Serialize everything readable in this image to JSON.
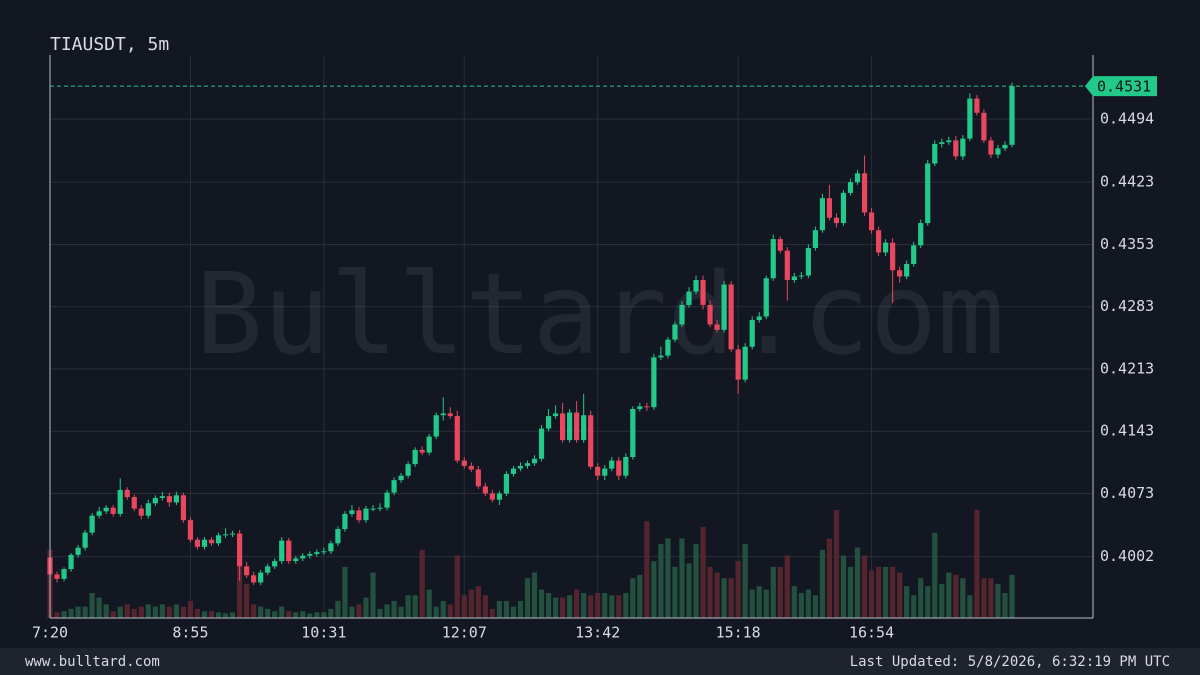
{
  "chart_data": {
    "type": "candlestick",
    "title": "TIAUSDT, 5m",
    "watermark": "Bulltard.com",
    "categories": [
      "7:20",
      null,
      null,
      null,
      null,
      null,
      null,
      null,
      null,
      null,
      null,
      null,
      null,
      null,
      null,
      null,
      null,
      null,
      null,
      null,
      "8:55",
      null,
      null,
      null,
      null,
      null,
      null,
      null,
      null,
      null,
      null,
      null,
      null,
      null,
      null,
      null,
      null,
      null,
      null,
      "10:31",
      null,
      null,
      null,
      null,
      null,
      null,
      null,
      null,
      null,
      null,
      null,
      null,
      null,
      null,
      null,
      null,
      null,
      null,
      null,
      "12:07",
      null,
      null,
      null,
      null,
      null,
      null,
      null,
      null,
      null,
      null,
      null,
      null,
      null,
      null,
      null,
      null,
      null,
      null,
      "13:42",
      null,
      null,
      null,
      null,
      null,
      null,
      null,
      null,
      null,
      null,
      null,
      null,
      null,
      null,
      null,
      null,
      null,
      null,
      null,
      "15:18",
      null,
      null,
      null,
      null,
      null,
      null,
      null,
      null,
      null,
      null,
      null,
      null,
      null,
      null,
      null,
      null,
      null,
      null,
      "16:54",
      null,
      null,
      null,
      null,
      null,
      null,
      null,
      null,
      null,
      null,
      null,
      null,
      null,
      null,
      null,
      null,
      null,
      null,
      null,
      null
    ],
    "open": [
      0.4001,
      0.3982,
      0.3977,
      0.3988,
      0.4004,
      0.4012,
      0.4029,
      0.4048,
      0.4053,
      0.4057,
      0.405,
      0.4077,
      0.4069,
      0.4056,
      0.4048,
      0.4062,
      0.4068,
      0.407,
      0.4063,
      0.4071,
      0.4043,
      0.4021,
      0.4013,
      0.4021,
      0.4017,
      0.4026,
      0.4027,
      0.4028,
      0.3991,
      0.3981,
      0.3973,
      0.3984,
      0.3991,
      0.3997,
      0.402,
      0.3997,
      0.4,
      0.4003,
      0.4005,
      0.4007,
      0.4008,
      0.4017,
      0.4033,
      0.405,
      0.4054,
      0.4043,
      0.4056,
      0.4056,
      0.4057,
      0.4074,
      0.4088,
      0.4093,
      0.4106,
      0.4122,
      0.4119,
      0.4137,
      0.4161,
      0.4163,
      0.416,
      0.411,
      0.4104,
      0.41,
      0.4081,
      0.4073,
      0.4066,
      0.4073,
      0.4095,
      0.4101,
      0.4104,
      0.4107,
      0.4112,
      0.4146,
      0.416,
      0.4163,
      0.4133,
      0.4164,
      0.4133,
      0.4161,
      0.4103,
      0.4093,
      0.4101,
      0.411,
      0.4093,
      0.4114,
      0.4168,
      0.4171,
      0.417,
      0.4226,
      0.4228,
      0.4246,
      0.4263,
      0.4285,
      0.43,
      0.4313,
      0.4285,
      0.4263,
      0.4257,
      0.4308,
      0.4235,
      0.4201,
      0.4238,
      0.4268,
      0.4272,
      0.4315,
      0.4359,
      0.4346,
      0.4313,
      0.4317,
      0.4318,
      0.4349,
      0.4369,
      0.4405,
      0.4383,
      0.4377,
      0.4411,
      0.4423,
      0.4433,
      0.4389,
      0.4369,
      0.4344,
      0.4355,
      0.4324,
      0.4317,
      0.4331,
      0.4352,
      0.4377,
      0.4444,
      0.4466,
      0.4468,
      0.447,
      0.4452,
      0.4472,
      0.4517,
      0.4501,
      0.447,
      0.4454,
      0.4461,
      0.4465
    ],
    "high": [
      0.4004,
      0.3985,
      0.399,
      0.4006,
      0.4015,
      0.4032,
      0.4051,
      0.4058,
      0.406,
      0.406,
      0.409,
      0.408,
      0.4072,
      0.406,
      0.4066,
      0.4071,
      0.4075,
      0.4074,
      0.4075,
      0.4074,
      0.4046,
      0.4024,
      0.4024,
      0.4024,
      0.4029,
      0.4034,
      0.4031,
      0.4032,
      0.3996,
      0.3985,
      0.3987,
      0.3994,
      0.4,
      0.4024,
      0.4023,
      0.4003,
      0.4006,
      0.4008,
      0.401,
      0.4012,
      0.402,
      0.4036,
      0.4053,
      0.406,
      0.4058,
      0.4059,
      0.406,
      0.4062,
      0.4077,
      0.4091,
      0.4096,
      0.4109,
      0.4125,
      0.4126,
      0.414,
      0.4164,
      0.4181,
      0.417,
      0.4166,
      0.4114,
      0.4108,
      0.4104,
      0.4085,
      0.4077,
      0.4076,
      0.4098,
      0.4104,
      0.4108,
      0.411,
      0.4116,
      0.415,
      0.4168,
      0.4172,
      0.4175,
      0.4168,
      0.4177,
      0.4185,
      0.4166,
      0.4107,
      0.4105,
      0.4114,
      0.4114,
      0.4118,
      0.4171,
      0.4175,
      0.4175,
      0.423,
      0.4238,
      0.4249,
      0.4266,
      0.4289,
      0.4305,
      0.4318,
      0.4318,
      0.429,
      0.4268,
      0.4312,
      0.4312,
      0.424,
      0.4242,
      0.4272,
      0.4277,
      0.4318,
      0.4364,
      0.4362,
      0.435,
      0.4321,
      0.4322,
      0.4353,
      0.4373,
      0.441,
      0.442,
      0.4388,
      0.4414,
      0.4427,
      0.4437,
      0.4453,
      0.4394,
      0.4373,
      0.4359,
      0.436,
      0.4328,
      0.4335,
      0.4356,
      0.4381,
      0.4448,
      0.447,
      0.4472,
      0.4474,
      0.4475,
      0.4476,
      0.4523,
      0.4521,
      0.4505,
      0.4474,
      0.4465,
      0.4469,
      0.4535
    ],
    "low": [
      0.3979,
      0.3973,
      0.3974,
      0.3985,
      0.4001,
      0.4009,
      0.4026,
      0.4045,
      0.405,
      0.4047,
      0.4047,
      0.4066,
      0.4053,
      0.4044,
      0.4045,
      0.4059,
      0.4065,
      0.4058,
      0.406,
      0.404,
      0.4018,
      0.401,
      0.401,
      0.4014,
      0.4014,
      0.4023,
      0.4024,
      0.3975,
      0.3978,
      0.397,
      0.397,
      0.3981,
      0.3988,
      0.3994,
      0.3994,
      0.3994,
      0.3997,
      0.4,
      0.4002,
      0.4004,
      0.4005,
      0.4014,
      0.403,
      0.4047,
      0.404,
      0.404,
      0.4053,
      0.4053,
      0.4054,
      0.4071,
      0.4085,
      0.409,
      0.4103,
      0.4116,
      0.4116,
      0.4134,
      0.4155,
      0.4157,
      0.4107,
      0.4101,
      0.4097,
      0.4078,
      0.407,
      0.4063,
      0.406,
      0.407,
      0.4092,
      0.4098,
      0.4101,
      0.4104,
      0.4109,
      0.4143,
      0.4157,
      0.413,
      0.413,
      0.413,
      0.413,
      0.41,
      0.4088,
      0.4088,
      0.4098,
      0.4088,
      0.409,
      0.4111,
      0.4165,
      0.4166,
      0.4167,
      0.4223,
      0.4225,
      0.4243,
      0.426,
      0.4282,
      0.4297,
      0.428,
      0.426,
      0.4254,
      0.4254,
      0.4232,
      0.4185,
      0.4198,
      0.4235,
      0.4265,
      0.4269,
      0.4312,
      0.4343,
      0.429,
      0.431,
      0.4314,
      0.4315,
      0.4346,
      0.4366,
      0.438,
      0.4372,
      0.4374,
      0.4408,
      0.442,
      0.4385,
      0.4365,
      0.434,
      0.434,
      0.4287,
      0.431,
      0.4314,
      0.4328,
      0.4349,
      0.4374,
      0.4441,
      0.4462,
      0.4465,
      0.4448,
      0.4448,
      0.4469,
      0.4498,
      0.4467,
      0.445,
      0.445,
      0.4458,
      0.4462
    ],
    "close": [
      0.3982,
      0.3977,
      0.3988,
      0.4004,
      0.4012,
      0.4029,
      0.4048,
      0.4053,
      0.4057,
      0.405,
      0.4077,
      0.4069,
      0.4056,
      0.4048,
      0.4062,
      0.4068,
      0.407,
      0.4063,
      0.4071,
      0.4043,
      0.4021,
      0.4013,
      0.4021,
      0.4017,
      0.4026,
      0.4027,
      0.4028,
      0.3991,
      0.3981,
      0.3973,
      0.3984,
      0.3991,
      0.3997,
      0.402,
      0.3997,
      0.4,
      0.4003,
      0.4005,
      0.4007,
      0.4008,
      0.4017,
      0.4033,
      0.405,
      0.4054,
      0.4043,
      0.4056,
      0.4056,
      0.4057,
      0.4074,
      0.4088,
      0.4093,
      0.4106,
      0.4122,
      0.4119,
      0.4137,
      0.4161,
      0.4163,
      0.416,
      0.411,
      0.4104,
      0.41,
      0.4081,
      0.4073,
      0.4066,
      0.4073,
      0.4095,
      0.4101,
      0.4104,
      0.4107,
      0.4112,
      0.4146,
      0.416,
      0.4163,
      0.4133,
      0.4164,
      0.4133,
      0.4161,
      0.4103,
      0.4093,
      0.4101,
      0.411,
      0.4093,
      0.4114,
      0.4168,
      0.4171,
      0.417,
      0.4226,
      0.4228,
      0.4246,
      0.4263,
      0.4285,
      0.43,
      0.4313,
      0.4285,
      0.4263,
      0.4257,
      0.4308,
      0.4235,
      0.4201,
      0.4238,
      0.4268,
      0.4272,
      0.4315,
      0.4359,
      0.4346,
      0.4313,
      0.4317,
      0.4318,
      0.4349,
      0.4369,
      0.4405,
      0.4383,
      0.4377,
      0.4411,
      0.4423,
      0.4433,
      0.4389,
      0.4369,
      0.4344,
      0.4355,
      0.4324,
      0.4317,
      0.4331,
      0.4352,
      0.4377,
      0.4444,
      0.4466,
      0.4468,
      0.447,
      0.4452,
      0.4472,
      0.4517,
      0.4501,
      0.447,
      0.4454,
      0.4461,
      0.4465,
      0.4531
    ],
    "volume": [
      60,
      5,
      6,
      8,
      10,
      10,
      22,
      18,
      12,
      6,
      10,
      12,
      8,
      10,
      12,
      10,
      12,
      10,
      12,
      10,
      15,
      8,
      6,
      6,
      5,
      4,
      5,
      45,
      30,
      12,
      10,
      8,
      6,
      10,
      6,
      5,
      6,
      4,
      5,
      5,
      8,
      15,
      45,
      10,
      12,
      18,
      40,
      8,
      12,
      15,
      10,
      20,
      20,
      60,
      25,
      10,
      15,
      12,
      55,
      20,
      25,
      28,
      20,
      8,
      15,
      15,
      10,
      15,
      35,
      40,
      25,
      22,
      18,
      18,
      20,
      25,
      22,
      20,
      22,
      22,
      20,
      20,
      22,
      35,
      38,
      85,
      50,
      65,
      70,
      45,
      70,
      48,
      65,
      80,
      45,
      40,
      35,
      35,
      50,
      65,
      25,
      28,
      25,
      45,
      45,
      55,
      28,
      22,
      25,
      20,
      60,
      70,
      95,
      55,
      45,
      62,
      55,
      42,
      45,
      45,
      45,
      40,
      28,
      20,
      35,
      28,
      75,
      30,
      40,
      38,
      35,
      20,
      95,
      35,
      35,
      30,
      22,
      38
    ],
    "ylim": [
      0.3933,
      0.4566
    ],
    "yticks": [
      0.4002,
      0.4073,
      0.4143,
      0.4213,
      0.4283,
      0.4353,
      0.4423,
      0.4494
    ],
    "grid": true,
    "last_price": 0.4531,
    "up_color": "#22c98a",
    "down_color": "#e8475f",
    "up_volume_color": "#24503f",
    "down_volume_color": "#55252f"
  },
  "footer": {
    "left": "www.bulltard.com",
    "right": "Last Updated: 5/8/2026, 6:32:19 PM UTC"
  }
}
